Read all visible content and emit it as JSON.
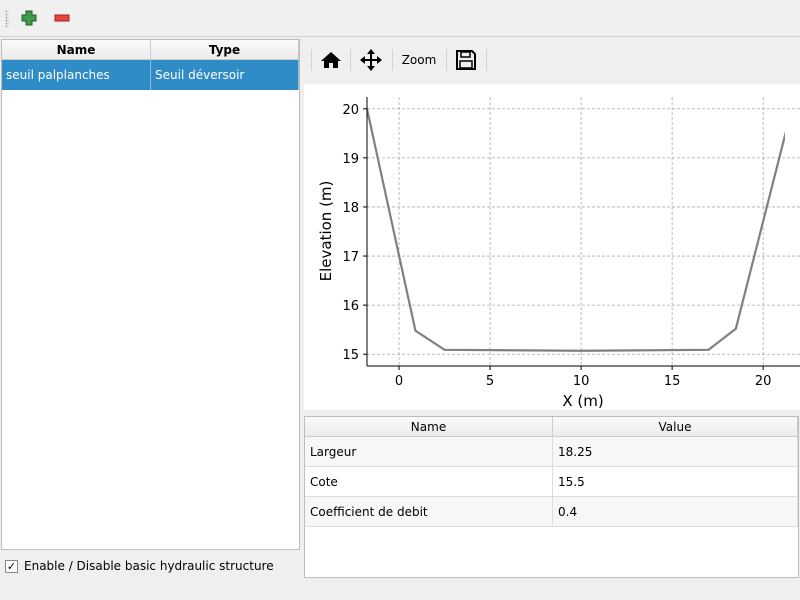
{
  "toolbar": {
    "add_icon": "plus-icon",
    "remove_icon": "minus-icon"
  },
  "structures": {
    "columns": [
      "Name",
      "Type"
    ],
    "rows": [
      {
        "name": "seuil palplanches",
        "type": "Seuil déversoir"
      }
    ]
  },
  "enable_checkbox": {
    "label": "Enable / Disable basic hydraulic structure",
    "checked": true,
    "mark": "✓"
  },
  "plot_toolbar": {
    "home_icon": "home-icon",
    "pan_icon": "move-icon",
    "zoom_label": "Zoom",
    "save_icon": "save-icon"
  },
  "chart_data": {
    "type": "line",
    "xlabel": "X (m)",
    "ylabel": "Elevation (m)",
    "xlim": [
      -1.76,
      21.2
    ],
    "ylim": [
      14.76,
      20.24
    ],
    "xticks": [
      0,
      5,
      10,
      15,
      20
    ],
    "yticks": [
      15,
      16,
      17,
      18,
      19,
      20
    ],
    "grid": true,
    "color": "#808080",
    "series": [
      {
        "x": [
          -1.76,
          0.9,
          2.5,
          10,
          17,
          18.5,
          21.4
        ],
        "y": [
          20.0,
          15.48,
          15.09,
          15.07,
          15.09,
          15.52,
          19.75
        ]
      }
    ]
  },
  "properties": {
    "columns": [
      "Name",
      "Value"
    ],
    "rows": [
      {
        "name": "Largeur",
        "value": "18.25"
      },
      {
        "name": "Cote",
        "value": "15.5"
      },
      {
        "name": "Coefficient de debit",
        "value": "0.4"
      }
    ]
  }
}
